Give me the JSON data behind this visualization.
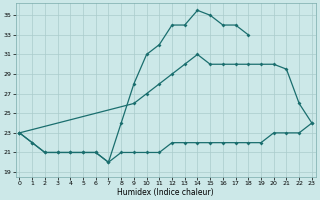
{
  "xlabel": "Humidex (Indice chaleur)",
  "bg_color": "#cce8e8",
  "grid_color": "#aacccc",
  "line_color": "#1a6e6e",
  "xticks": [
    0,
    1,
    2,
    3,
    4,
    5,
    6,
    7,
    8,
    9,
    10,
    11,
    12,
    13,
    14,
    15,
    16,
    17,
    18,
    19,
    20,
    21,
    22,
    23
  ],
  "yticks": [
    19,
    21,
    23,
    25,
    27,
    29,
    31,
    33,
    35
  ],
  "xlim": [
    -0.3,
    23.3
  ],
  "ylim": [
    18.5,
    36.2
  ],
  "s1_x": [
    0,
    1,
    2,
    3,
    4,
    5,
    6,
    7,
    8,
    9,
    10,
    11,
    12,
    13,
    14,
    15,
    16,
    17,
    18
  ],
  "s1_y": [
    23,
    22,
    21,
    21,
    21,
    21,
    21,
    20,
    24,
    28,
    31,
    32,
    34,
    34,
    35.5,
    35,
    34,
    34,
    33
  ],
  "s2_x": [
    0,
    9,
    10,
    11,
    12,
    13,
    14,
    15,
    16,
    17,
    18,
    19,
    20,
    21,
    22,
    23
  ],
  "s2_y": [
    23,
    26,
    27,
    28,
    29,
    30,
    31,
    30,
    30,
    30,
    30,
    30,
    30,
    29.5,
    26,
    24
  ],
  "s3_x": [
    0,
    1,
    2,
    3,
    4,
    5,
    6,
    7,
    8,
    9,
    10,
    11,
    12,
    13,
    14,
    15,
    16,
    17,
    18,
    19,
    20,
    21,
    22,
    23
  ],
  "s3_y": [
    23,
    22,
    21,
    21,
    21,
    21,
    21,
    20,
    21,
    21,
    21,
    21,
    22,
    22,
    22,
    22,
    22,
    22,
    22,
    22,
    23,
    23,
    23,
    24
  ]
}
